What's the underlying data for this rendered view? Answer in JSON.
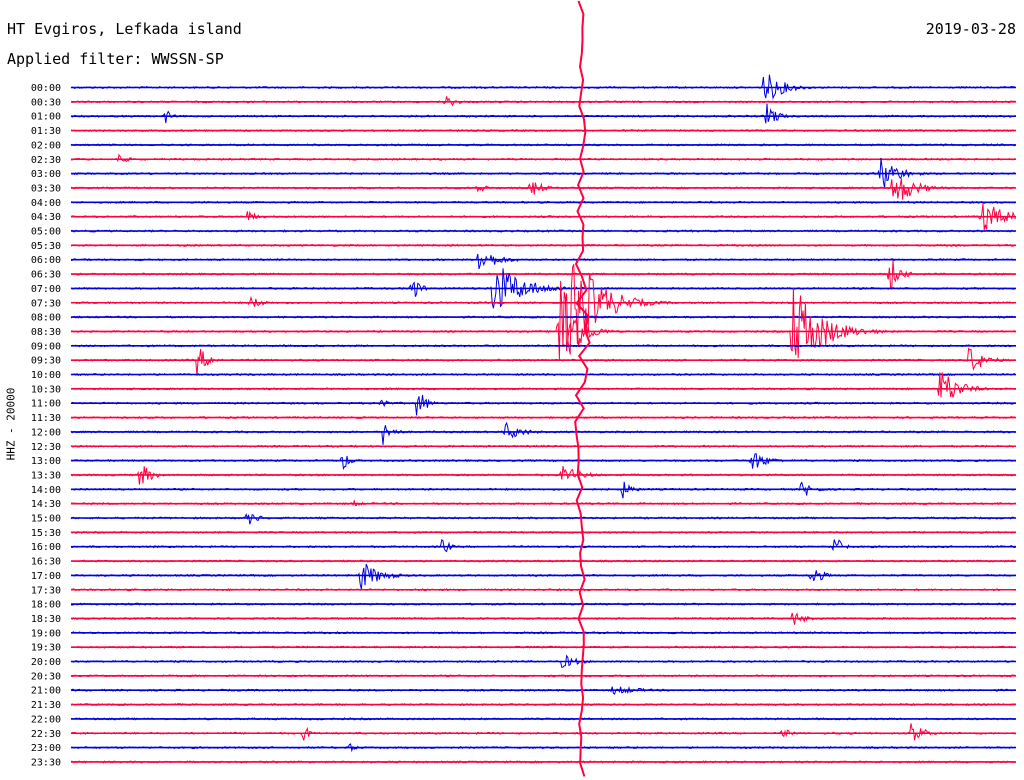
{
  "chart_data": {
    "type": "line",
    "title": "HT Evgiros, Lefkada island",
    "date": "2019-03-28",
    "subtitle": "Applied filter: WWSSN-SP",
    "ylabel": "HHZ - 20000",
    "colors": {
      "odd": "#0000e0",
      "even": "#ff0040"
    },
    "rows": [
      "00:00",
      "00:30",
      "01:00",
      "01:30",
      "02:00",
      "02:30",
      "03:00",
      "03:30",
      "04:00",
      "04:30",
      "05:00",
      "05:30",
      "06:00",
      "06:30",
      "07:00",
      "07:30",
      "08:00",
      "08:30",
      "09:00",
      "09:30",
      "10:00",
      "10:30",
      "11:00",
      "11:30",
      "12:00",
      "12:30",
      "13:00",
      "13:30",
      "14:00",
      "14:30",
      "15:00",
      "15:30",
      "16:00",
      "16:30",
      "17:00",
      "17:30",
      "18:00",
      "18:30",
      "19:00",
      "19:30",
      "20:00",
      "20:30",
      "21:00",
      "21:30",
      "22:00",
      "22:30",
      "23:00",
      "23:30"
    ],
    "x_range_minutes": [
      0,
      30
    ],
    "events": [
      {
        "row": 0,
        "t": 22.0,
        "amp": 18,
        "dur": 1.0
      },
      {
        "row": 1,
        "t": 11.9,
        "amp": 7,
        "dur": 0.6
      },
      {
        "row": 2,
        "t": 3.0,
        "amp": 8,
        "dur": 0.3
      },
      {
        "row": 2,
        "t": 22.1,
        "amp": 16,
        "dur": 0.5
      },
      {
        "row": 5,
        "t": 1.5,
        "amp": 6,
        "dur": 0.5
      },
      {
        "row": 6,
        "t": 25.7,
        "amp": 20,
        "dur": 0.9
      },
      {
        "row": 7,
        "t": 12.9,
        "amp": 6,
        "dur": 0.5
      },
      {
        "row": 7,
        "t": 14.6,
        "amp": 10,
        "dur": 0.6
      },
      {
        "row": 7,
        "t": 26.1,
        "amp": 22,
        "dur": 1.0
      },
      {
        "row": 9,
        "t": 5.6,
        "amp": 6,
        "dur": 0.6
      },
      {
        "row": 9,
        "t": 28.9,
        "amp": 18,
        "dur": 1.2
      },
      {
        "row": 12,
        "t": 12.9,
        "amp": 14,
        "dur": 1.0
      },
      {
        "row": 13,
        "t": 26.0,
        "amp": 20,
        "dur": 0.5
      },
      {
        "row": 14,
        "t": 10.8,
        "amp": 16,
        "dur": 0.4
      },
      {
        "row": 14,
        "t": 13.4,
        "amp": 30,
        "dur": 1.5
      },
      {
        "row": 15,
        "t": 5.7,
        "amp": 7,
        "dur": 0.7
      },
      {
        "row": 15,
        "t": 15.8,
        "amp": 60,
        "dur": 1.0
      },
      {
        "row": 15,
        "t": 16.0,
        "amp": 55,
        "dur": 1.4
      },
      {
        "row": 17,
        "t": 15.5,
        "amp": 70,
        "dur": 0.8
      },
      {
        "row": 17,
        "t": 22.9,
        "amp": 50,
        "dur": 1.5
      },
      {
        "row": 19,
        "t": 4.0,
        "amp": 16,
        "dur": 0.6
      },
      {
        "row": 19,
        "t": 28.5,
        "amp": 16,
        "dur": 0.8
      },
      {
        "row": 21,
        "t": 27.6,
        "amp": 24,
        "dur": 0.9
      },
      {
        "row": 22,
        "t": 9.8,
        "amp": 12,
        "dur": 0.3
      },
      {
        "row": 22,
        "t": 11.0,
        "amp": 20,
        "dur": 0.4
      },
      {
        "row": 24,
        "t": 9.9,
        "amp": 14,
        "dur": 0.5
      },
      {
        "row": 24,
        "t": 13.8,
        "amp": 10,
        "dur": 0.9
      },
      {
        "row": 26,
        "t": 8.6,
        "amp": 12,
        "dur": 0.4
      },
      {
        "row": 26,
        "t": 21.6,
        "amp": 12,
        "dur": 0.8
      },
      {
        "row": 27,
        "t": 2.2,
        "amp": 16,
        "dur": 0.5
      },
      {
        "row": 27,
        "t": 15.6,
        "amp": 10,
        "dur": 1.0
      },
      {
        "row": 28,
        "t": 17.5,
        "amp": 10,
        "dur": 0.5
      },
      {
        "row": 28,
        "t": 23.2,
        "amp": 10,
        "dur": 0.6
      },
      {
        "row": 29,
        "t": 8.9,
        "amp": 4,
        "dur": 0.6
      },
      {
        "row": 30,
        "t": 5.6,
        "amp": 8,
        "dur": 0.6
      },
      {
        "row": 32,
        "t": 11.8,
        "amp": 12,
        "dur": 0.3
      },
      {
        "row": 32,
        "t": 24.2,
        "amp": 16,
        "dur": 0.4
      },
      {
        "row": 34,
        "t": 9.2,
        "amp": 16,
        "dur": 1.0
      },
      {
        "row": 34,
        "t": 23.5,
        "amp": 14,
        "dur": 0.5
      },
      {
        "row": 37,
        "t": 22.9,
        "amp": 9,
        "dur": 0.6
      },
      {
        "row": 40,
        "t": 15.6,
        "amp": 8,
        "dur": 0.8
      },
      {
        "row": 42,
        "t": 17.2,
        "amp": 5,
        "dur": 1.5
      },
      {
        "row": 45,
        "t": 7.4,
        "amp": 10,
        "dur": 0.3
      },
      {
        "row": 45,
        "t": 26.7,
        "amp": 18,
        "dur": 0.5
      },
      {
        "row": 45,
        "t": 22.6,
        "amp": 6,
        "dur": 0.4
      },
      {
        "row": 46,
        "t": 8.8,
        "amp": 5,
        "dur": 0.5
      }
    ],
    "large_event": {
      "row": 17,
      "t": 16.2,
      "amp_up": 336,
      "amp_down": 445
    }
  }
}
